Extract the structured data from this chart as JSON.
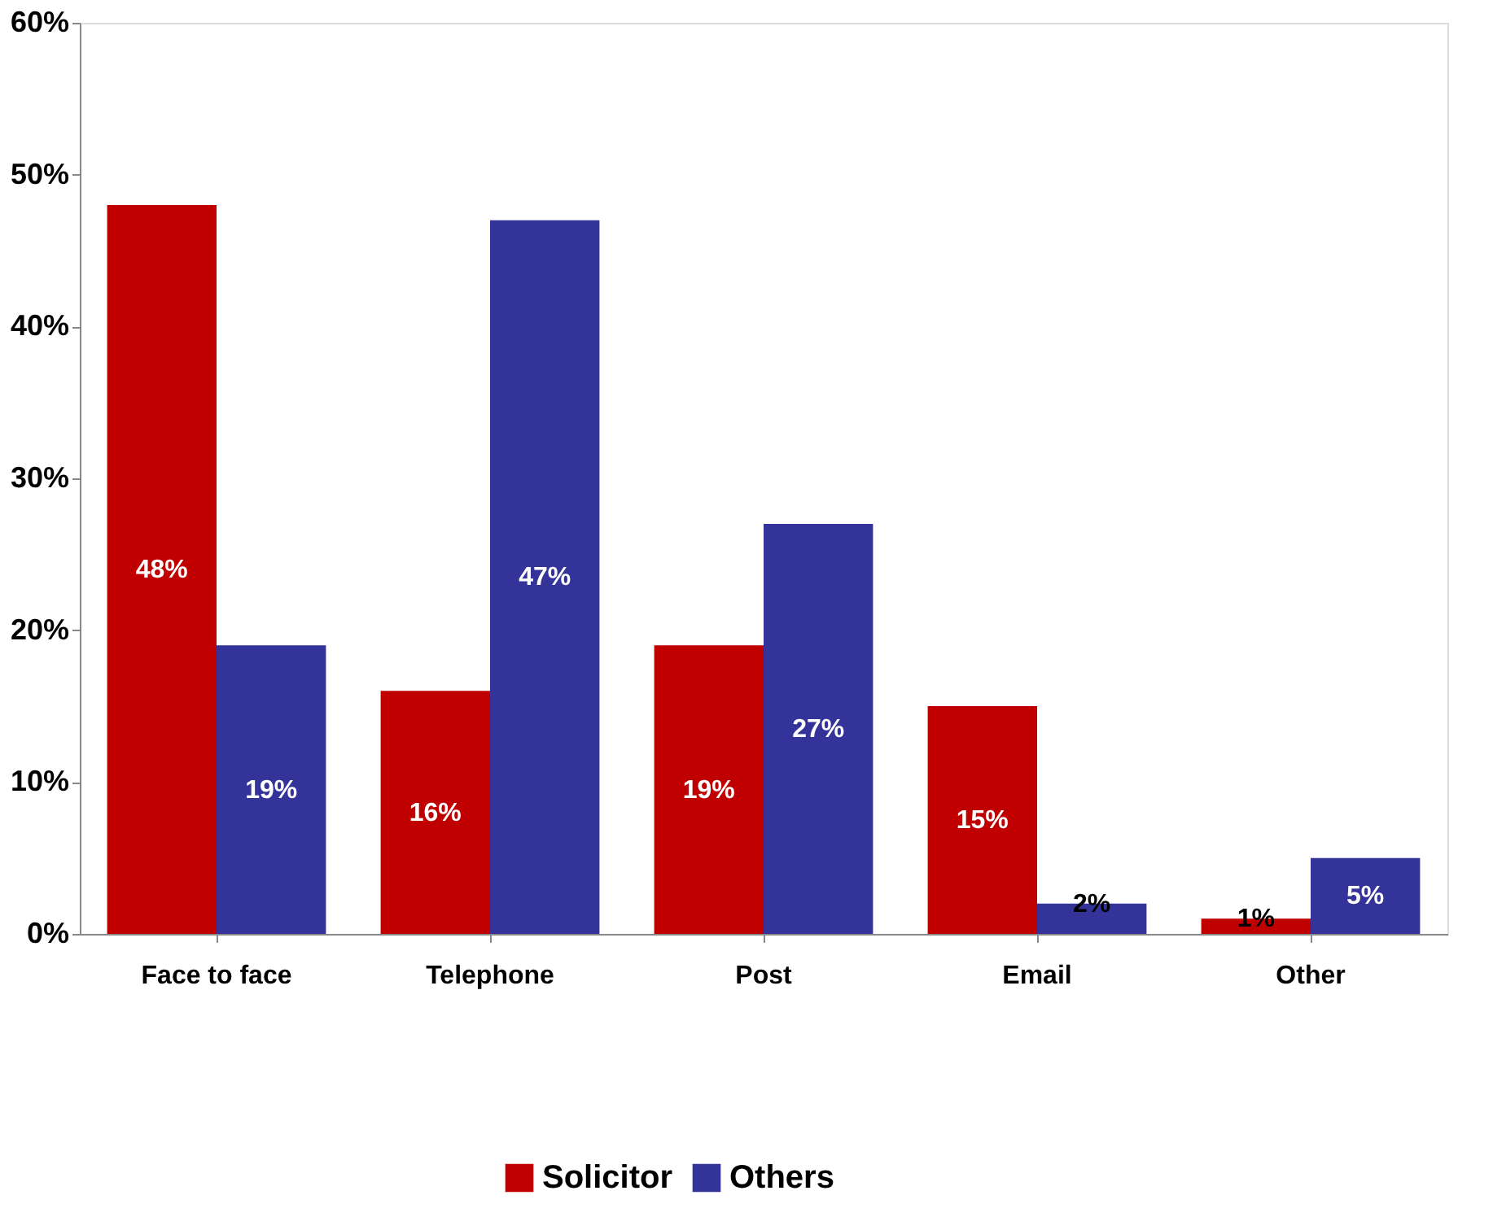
{
  "chart_data": {
    "type": "bar",
    "categories": [
      "Face to face",
      "Telephone",
      "Post",
      "Email",
      "Other"
    ],
    "series": [
      {
        "name": "Solicitor",
        "color": "#c00000",
        "values": [
          48,
          16,
          19,
          15,
          1
        ],
        "value_labels": [
          "48%",
          "16%",
          "19%",
          "15%",
          "1%"
        ]
      },
      {
        "name": "Others",
        "color": "#333399",
        "values": [
          19,
          47,
          27,
          2,
          5
        ],
        "value_labels": [
          "19%",
          "47%",
          "27%",
          "2%",
          "5%"
        ]
      }
    ],
    "ylim": [
      0,
      60
    ],
    "yticks": [
      {
        "value": 0,
        "label": "0%"
      },
      {
        "value": 10,
        "label": "10%"
      },
      {
        "value": 20,
        "label": "20%"
      },
      {
        "value": 30,
        "label": "30%"
      },
      {
        "value": 40,
        "label": "40%"
      },
      {
        "value": 50,
        "label": "50%"
      },
      {
        "value": 60,
        "label": "60%"
      }
    ],
    "legend": "bottom",
    "grid": false
  }
}
